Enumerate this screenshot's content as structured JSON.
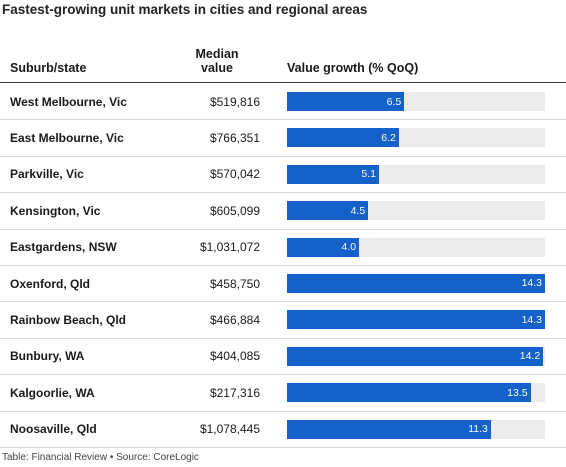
{
  "title": "Fastest-growing unit markets in cities and regional areas",
  "columns": {
    "suburb": "Suburb/state",
    "median_line1": "Median",
    "median_line2": "value",
    "growth": "Value growth (% QoQ)"
  },
  "footer": "Table: Financial Review • Source: CoreLogic",
  "chart_data": {
    "type": "table",
    "title": "Fastest-growing unit markets in cities and regional areas",
    "columns": [
      "Suburb/state",
      "Median value",
      "Value growth (% QoQ)"
    ],
    "xlim": [
      0,
      14.3
    ],
    "colors": {
      "bar": "#1461c9",
      "track": "#ebebeb"
    },
    "rows": [
      {
        "suburb": "West Melbourne, Vic",
        "median": "$519,816",
        "growth": 6.5,
        "growth_label": "6.5"
      },
      {
        "suburb": "East Melbourne, Vic",
        "median": "$766,351",
        "growth": 6.2,
        "growth_label": "6.2"
      },
      {
        "suburb": "Parkville, Vic",
        "median": "$570,042",
        "growth": 5.1,
        "growth_label": "5.1"
      },
      {
        "suburb": "Kensington, Vic",
        "median": "$605,099",
        "growth": 4.5,
        "growth_label": "4.5"
      },
      {
        "suburb": "Eastgardens, NSW",
        "median": "$1,031,072",
        "growth": 4.0,
        "growth_label": "4.0"
      },
      {
        "suburb": "Oxenford, Qld",
        "median": "$458,750",
        "growth": 14.3,
        "growth_label": "14.3"
      },
      {
        "suburb": "Rainbow Beach, Qld",
        "median": "$466,884",
        "growth": 14.3,
        "growth_label": "14.3"
      },
      {
        "suburb": "Bunbury, WA",
        "median": "$404,085",
        "growth": 14.2,
        "growth_label": "14.2"
      },
      {
        "suburb": "Kalgoorlie, WA",
        "median": "$217,316",
        "growth": 13.5,
        "growth_label": "13.5"
      },
      {
        "suburb": "Noosaville, Qld",
        "median": "$1,078,445",
        "growth": 11.3,
        "growth_label": "11.3"
      }
    ]
  }
}
